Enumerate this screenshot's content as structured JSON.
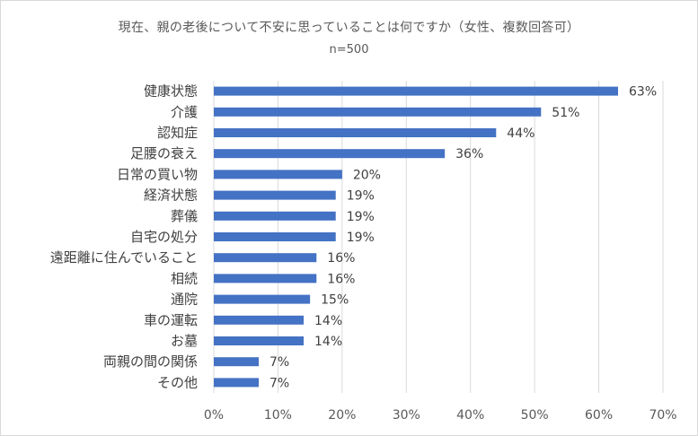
{
  "chart_data": {
    "type": "bar",
    "orientation": "horizontal",
    "title": "現在、親の老後について不安に思っていることは何ですか（女性、複数回答可）",
    "subtitle": "n=500",
    "categories": [
      "健康状態",
      "介護",
      "認知症",
      "足腰の衰え",
      "日常の買い物",
      "経済状態",
      "葬儀",
      "自宅の処分",
      "遠距離に住んでいること",
      "相続",
      "通院",
      "車の運転",
      "お墓",
      "両親の間の関係",
      "その他"
    ],
    "values": [
      63,
      51,
      44,
      36,
      20,
      19,
      19,
      19,
      16,
      16,
      15,
      14,
      14,
      7,
      7
    ],
    "value_labels": [
      "63%",
      "51%",
      "44%",
      "36%",
      "20%",
      "19%",
      "19%",
      "19%",
      "16%",
      "16%",
      "15%",
      "14%",
      "14%",
      "7%",
      "7%"
    ],
    "x_ticks": [
      0,
      10,
      20,
      30,
      40,
      50,
      60,
      70
    ],
    "x_tick_labels": [
      "0%",
      "10%",
      "20%",
      "30%",
      "40%",
      "50%",
      "60%",
      "70%"
    ],
    "xlim": [
      0,
      70
    ],
    "xlabel": "",
    "ylabel": "",
    "grid": true,
    "legend": "none",
    "bar_color": "#4472c4",
    "grid_color": "#d9d9d9"
  }
}
